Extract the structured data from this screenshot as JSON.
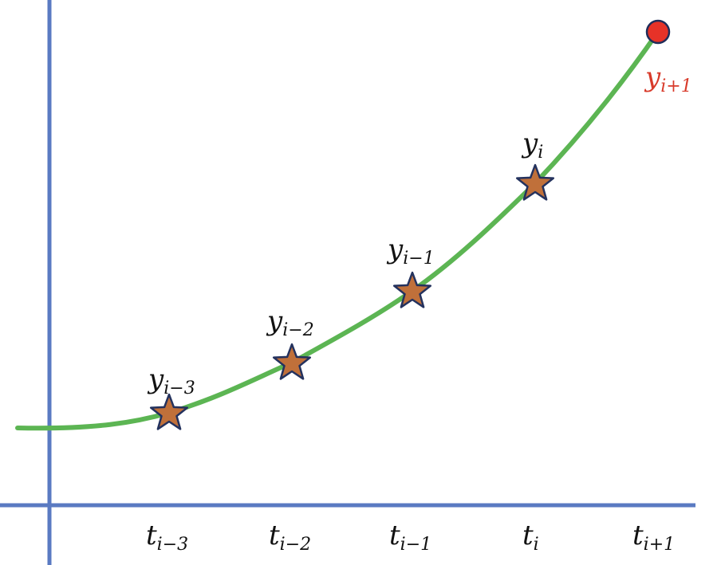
{
  "colors": {
    "axis": "#5a7ac2",
    "curve": "#5cb553",
    "star_fill": "#c0703a",
    "star_stroke": "#24325e",
    "point_fill": "#e63228",
    "point_stroke": "#1f2d5a",
    "label_dark": "#111111",
    "label_red": "#d83a2a"
  },
  "diagram": {
    "past_points": [
      {
        "y": {
          "main": "y",
          "sub": "i−3"
        },
        "t": {
          "main": "t",
          "sub": "i−3"
        }
      },
      {
        "y": {
          "main": "y",
          "sub": "i−2"
        },
        "t": {
          "main": "t",
          "sub": "i−2"
        }
      },
      {
        "y": {
          "main": "y",
          "sub": "i−1"
        },
        "t": {
          "main": "t",
          "sub": "i−1"
        }
      },
      {
        "y": {
          "main": "y",
          "sub": "i"
        },
        "t": {
          "main": "t",
          "sub": "i"
        }
      }
    ],
    "next_point": {
      "y": {
        "main": "y",
        "sub": "i+1"
      },
      "t": {
        "main": "t",
        "sub": "i+1"
      }
    }
  }
}
